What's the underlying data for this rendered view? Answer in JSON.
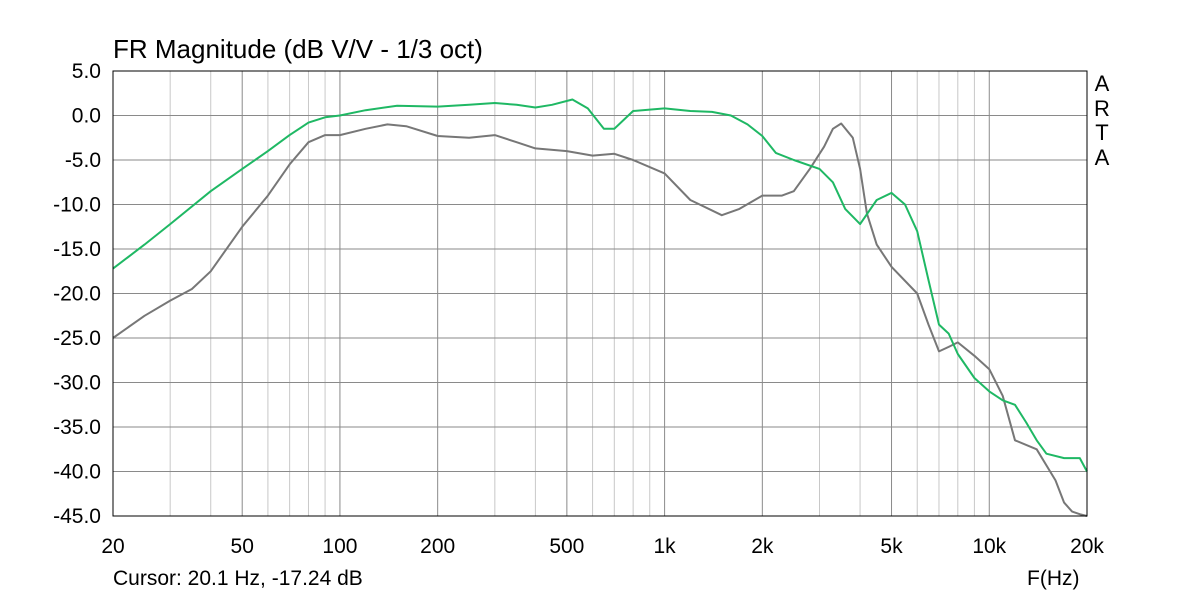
{
  "chart_data": {
    "type": "line",
    "title": "FR Magnitude (dB V/V - 1/3 oct)",
    "xlabel": "F(Hz)",
    "ylabel": "",
    "xscale": "log",
    "xlim": [
      20,
      20000
    ],
    "ylim": [
      -45,
      5
    ],
    "grid": true,
    "x_ticks": [
      20,
      50,
      100,
      200,
      500,
      1000,
      2000,
      5000,
      10000,
      20000
    ],
    "x_tick_labels": [
      "20",
      "50",
      "100",
      "200",
      "500",
      "1k",
      "2k",
      "5k",
      "10k",
      "20k"
    ],
    "y_ticks": [
      5,
      0,
      -5,
      -10,
      -15,
      -20,
      -25,
      -30,
      -35,
      -40,
      -45
    ],
    "y_tick_labels": [
      "5.0",
      "0.0",
      "-5.0",
      "-10.0",
      "-15.0",
      "-20.0",
      "-25.0",
      "-30.0",
      "-35.0",
      "-40.0",
      "-45.0"
    ],
    "series": [
      {
        "color": "#1fb864",
        "x": [
          20,
          25,
          30,
          40,
          50,
          60,
          70,
          80,
          90,
          100,
          120,
          150,
          200,
          250,
          300,
          350,
          400,
          450,
          520,
          580,
          650,
          700,
          800,
          1000,
          1200,
          1400,
          1600,
          1800,
          2000,
          2200,
          2500,
          3000,
          3300,
          3600,
          4000,
          4500,
          5000,
          5500,
          6000,
          6500,
          7000,
          7500,
          8000,
          9000,
          10000,
          11000,
          12000,
          13000,
          14000,
          15000,
          17000,
          19000,
          20000
        ],
        "y": [
          -17.2,
          -14.5,
          -12.2,
          -8.5,
          -6.0,
          -4.0,
          -2.2,
          -0.8,
          -0.2,
          0.0,
          0.6,
          1.1,
          1.0,
          1.2,
          1.4,
          1.2,
          0.9,
          1.2,
          1.8,
          0.8,
          -1.5,
          -1.5,
          0.5,
          0.8,
          0.5,
          0.4,
          0.0,
          -1.0,
          -2.3,
          -4.2,
          -5.0,
          -6.0,
          -7.5,
          -10.5,
          -12.2,
          -9.5,
          -8.7,
          -10.0,
          -13.0,
          -18.5,
          -23.5,
          -24.5,
          -26.8,
          -29.5,
          -31.0,
          -32.0,
          -32.5,
          -34.5,
          -36.5,
          -38.0,
          -38.5,
          -38.5,
          -40.0
        ]
      },
      {
        "color": "#777777",
        "x": [
          20,
          25,
          30,
          35,
          40,
          50,
          60,
          70,
          80,
          90,
          100,
          120,
          140,
          160,
          200,
          250,
          300,
          350,
          400,
          500,
          600,
          700,
          800,
          1000,
          1200,
          1500,
          1700,
          2000,
          2300,
          2500,
          2800,
          3100,
          3300,
          3500,
          3800,
          4000,
          4200,
          4500,
          5000,
          6000,
          6500,
          7000,
          7500,
          8000,
          9000,
          10000,
          11000,
          12000,
          14000,
          16000,
          17000,
          18000,
          19000,
          20000
        ],
        "y": [
          -25.0,
          -22.5,
          -20.8,
          -19.5,
          -17.5,
          -12.5,
          -9.0,
          -5.5,
          -3.0,
          -2.2,
          -2.2,
          -1.5,
          -1.0,
          -1.2,
          -2.3,
          -2.5,
          -2.2,
          -3.0,
          -3.7,
          -4.0,
          -4.5,
          -4.3,
          -5.0,
          -6.5,
          -9.5,
          -11.2,
          -10.5,
          -9.0,
          -9.0,
          -8.5,
          -6.0,
          -3.5,
          -1.5,
          -0.9,
          -2.5,
          -6.0,
          -11.0,
          -14.5,
          -17.0,
          -20.0,
          -23.5,
          -26.5,
          -26.0,
          -25.5,
          -27.0,
          -28.5,
          -31.5,
          -36.5,
          -37.5,
          -41.0,
          -43.5,
          -44.5,
          -44.8,
          -45.3
        ]
      }
    ],
    "annotations": {
      "cursor_text": "Cursor: 20.1 Hz, -17.24 dB",
      "brand_letters": [
        "A",
        "R",
        "T",
        "A"
      ]
    }
  }
}
